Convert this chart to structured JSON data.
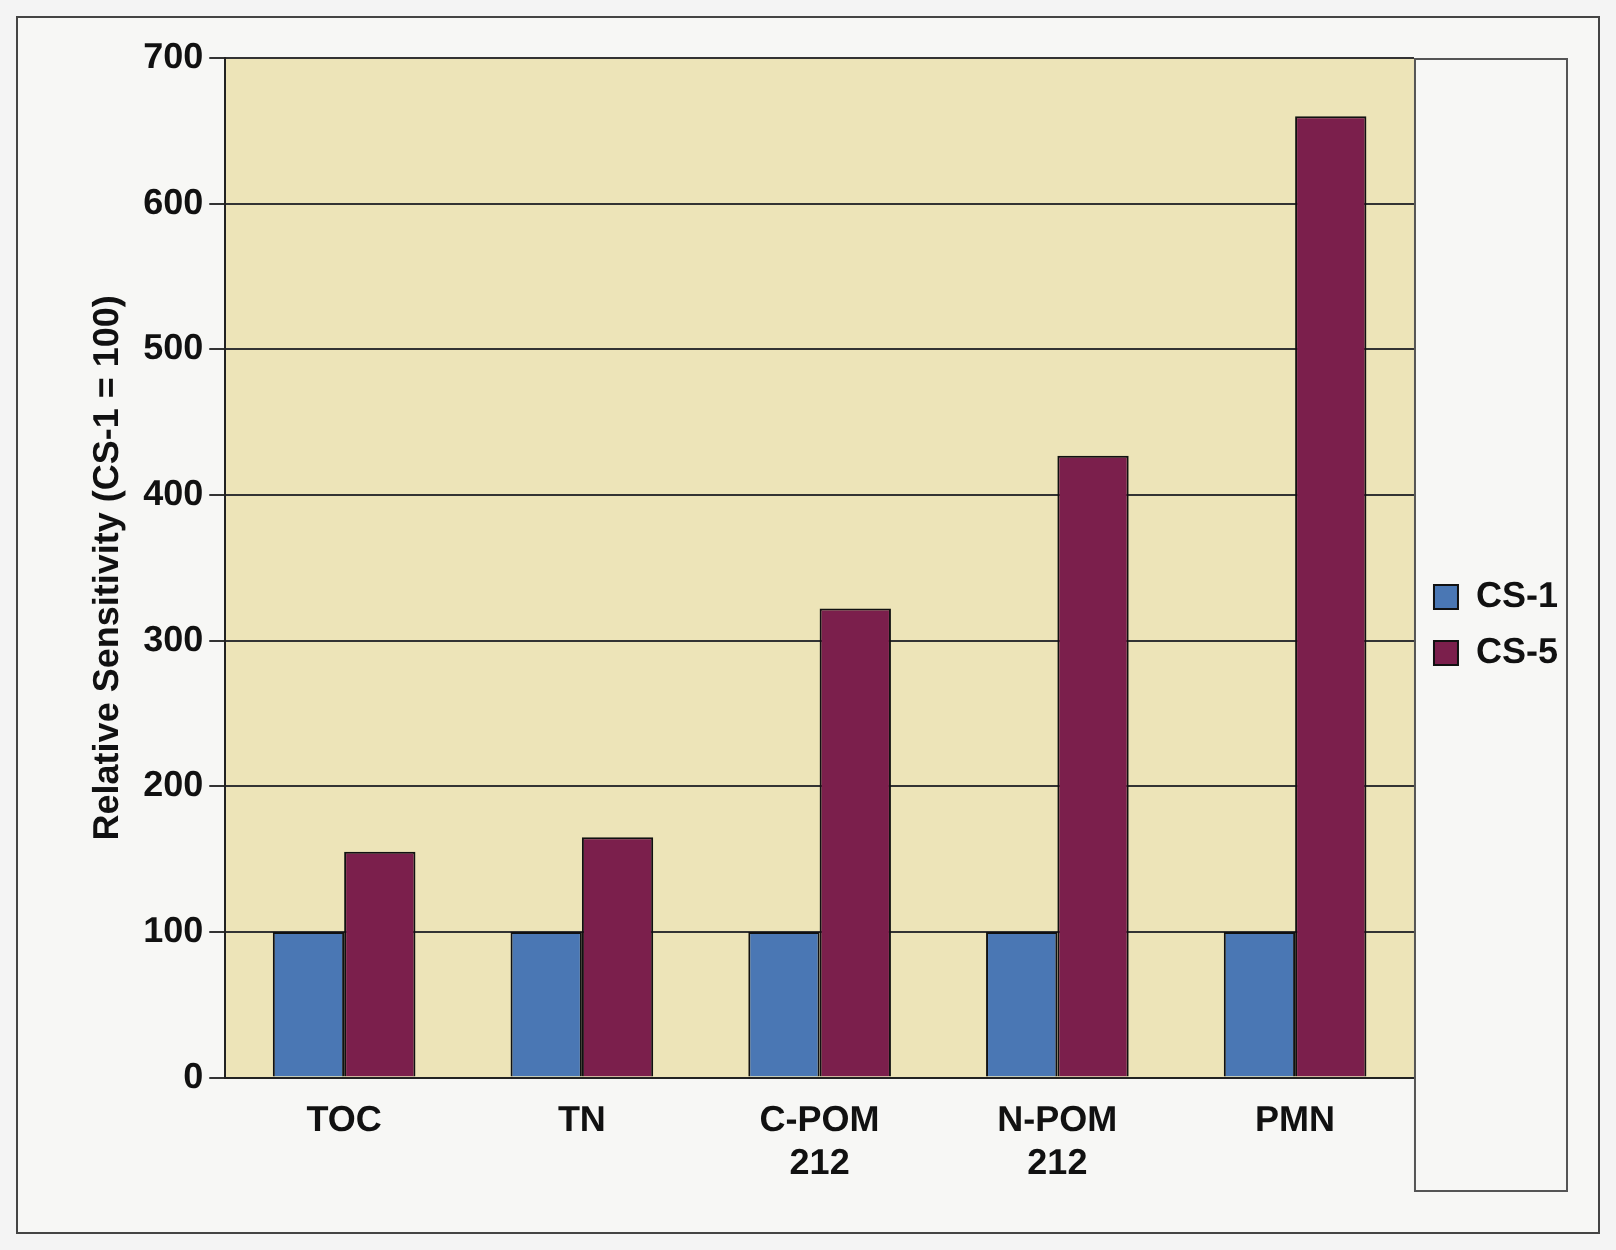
{
  "chart_data": {
    "type": "bar",
    "ylabel": "Relative Sensitivity (CS-1 = 100)",
    "categories": [
      "TOC",
      "TN",
      "C-POM 212",
      "N-POM 212",
      "PMN"
    ],
    "series": [
      {
        "name": "CS-1",
        "color": "#4a77b4",
        "values": [
          100,
          100,
          100,
          100,
          100
        ]
      },
      {
        "name": "CS-5",
        "color": "#7b1f4c",
        "values": [
          155,
          165,
          322,
          427,
          660
        ]
      }
    ],
    "ylim": [
      0,
      700
    ],
    "yticks": [
      0,
      100,
      200,
      300,
      400,
      500,
      600,
      700
    ],
    "grid": "y",
    "legend": "right"
  }
}
